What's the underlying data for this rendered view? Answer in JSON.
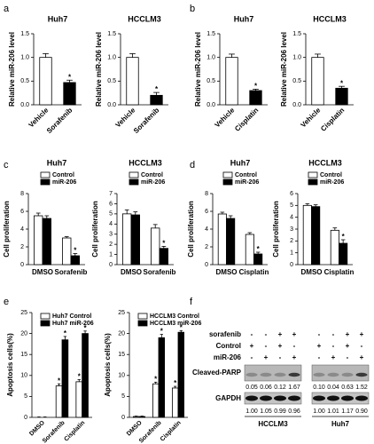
{
  "panel_labels": [
    "a",
    "b",
    "c",
    "d",
    "e",
    "f"
  ],
  "chart_data": [
    {
      "type": "bar",
      "title": "Huh7",
      "ylabel": "Relative miR-206 level",
      "categories": [
        "Vehicle",
        "Sorafenib"
      ],
      "values": [
        1.0,
        0.47
      ],
      "errors": [
        0.08,
        0.05
      ],
      "colors": [
        "#ffffff",
        "#000000"
      ],
      "annotations": [
        null,
        "*"
      ],
      "ylim": [
        0,
        1.5
      ],
      "yticks": [
        {
          "value": 0,
          "label": "0.0"
        },
        {
          "value": 0.5,
          "label": "0.5"
        },
        {
          "value": 1,
          "label": "1.0"
        },
        {
          "value": 1.5,
          "label": "1.5"
        }
      ]
    },
    {
      "type": "bar",
      "title": "HCCLM3",
      "ylabel": "Relative miR-206 level",
      "categories": [
        "Vehicle",
        "Sorafenib"
      ],
      "values": [
        1.0,
        0.2
      ],
      "errors": [
        0.08,
        0.06
      ],
      "colors": [
        "#ffffff",
        "#000000"
      ],
      "annotations": [
        null,
        "*"
      ],
      "ylim": [
        0,
        1.5
      ],
      "yticks": [
        {
          "value": 0,
          "label": "0.0"
        },
        {
          "value": 0.5,
          "label": "0.5"
        },
        {
          "value": 1,
          "label": "1.0"
        },
        {
          "value": 1.5,
          "label": "1.5"
        }
      ]
    },
    {
      "type": "bar",
      "title": "Huh7",
      "ylabel": "Relative miR-206 level",
      "categories": [
        "Vehicle",
        "Cisplatin"
      ],
      "values": [
        1.0,
        0.3
      ],
      "errors": [
        0.07,
        0.03
      ],
      "colors": [
        "#ffffff",
        "#000000"
      ],
      "annotations": [
        null,
        "*"
      ],
      "ylim": [
        0,
        1.5
      ],
      "yticks": [
        {
          "value": 0,
          "label": "0.0"
        },
        {
          "value": 0.5,
          "label": "0.5"
        },
        {
          "value": 1,
          "label": "1.0"
        },
        {
          "value": 1.5,
          "label": "1.5"
        }
      ]
    },
    {
      "type": "bar",
      "title": "HCCLM3",
      "ylabel": "Relative miR-206 level",
      "categories": [
        "Vehicle",
        "Cisplatin"
      ],
      "values": [
        1.0,
        0.35
      ],
      "errors": [
        0.07,
        0.04
      ],
      "colors": [
        "#ffffff",
        "#000000"
      ],
      "annotations": [
        null,
        "*"
      ],
      "ylim": [
        0,
        1.5
      ],
      "yticks": [
        {
          "value": 0,
          "label": "0.0"
        },
        {
          "value": 0.5,
          "label": "0.5"
        },
        {
          "value": 1,
          "label": "1.0"
        },
        {
          "value": 1.5,
          "label": "1.5"
        }
      ]
    },
    {
      "type": "bar",
      "title": "Huh7",
      "ylabel": "Cell proliferation",
      "categories": [
        "DMSO",
        "Sorafenib"
      ],
      "series": [
        {
          "name": "Control",
          "color": "#ffffff",
          "values": [
            5.5,
            3.0
          ],
          "errors": [
            0.3,
            0.15
          ],
          "annotations": [
            null,
            null
          ]
        },
        {
          "name": "miR-206",
          "color": "#000000",
          "values": [
            5.2,
            1.0
          ],
          "errors": [
            0.3,
            0.25
          ],
          "annotations": [
            null,
            "*"
          ]
        }
      ],
      "ylim": [
        0,
        8
      ],
      "yticks": [
        0,
        2,
        4,
        6,
        8
      ]
    },
    {
      "type": "bar",
      "title": "HCCLM3",
      "ylabel": "Cell proliferation",
      "categories": [
        "DMSO",
        "Sorafenib"
      ],
      "series": [
        {
          "name": "Control",
          "color": "#ffffff",
          "values": [
            5.0,
            3.6
          ],
          "errors": [
            0.4,
            0.35
          ],
          "annotations": [
            null,
            null
          ]
        },
        {
          "name": "miR-206",
          "color": "#000000",
          "values": [
            4.9,
            1.6
          ],
          "errors": [
            0.3,
            0.2
          ],
          "annotations": [
            null,
            "*"
          ]
        }
      ],
      "ylim": [
        0,
        7
      ],
      "yticks": [
        0,
        1,
        2,
        3,
        4,
        5,
        6,
        7
      ]
    },
    {
      "type": "bar",
      "title": "Huh7",
      "ylabel": "Cell proliferation",
      "categories": [
        "DMSO",
        "Cisplatin"
      ],
      "series": [
        {
          "name": "Control",
          "color": "#ffffff",
          "values": [
            5.7,
            3.4
          ],
          "errors": [
            0.2,
            0.2
          ],
          "annotations": [
            null,
            null
          ]
        },
        {
          "name": "miR-206",
          "color": "#000000",
          "values": [
            5.2,
            1.2
          ],
          "errors": [
            0.3,
            0.2
          ],
          "annotations": [
            null,
            "*"
          ]
        }
      ],
      "ylim": [
        0,
        8
      ],
      "yticks": [
        0,
        2,
        4,
        6,
        8
      ]
    },
    {
      "type": "bar",
      "title": "HCCLM3",
      "ylabel": "Cell proliferation",
      "categories": [
        "DMSO",
        "Cisplatin"
      ],
      "series": [
        {
          "name": "Control",
          "color": "#ffffff",
          "values": [
            5.0,
            2.9
          ],
          "errors": [
            0.15,
            0.2
          ],
          "annotations": [
            null,
            null
          ]
        },
        {
          "name": "miR-206",
          "color": "#000000",
          "values": [
            4.9,
            1.8
          ],
          "errors": [
            0.15,
            0.3
          ],
          "annotations": [
            null,
            "*"
          ]
        }
      ],
      "ylim": [
        0,
        6
      ],
      "yticks": [
        0,
        1,
        2,
        3,
        4,
        5,
        6
      ]
    },
    {
      "type": "bar",
      "ylabel": "Apoptosis cells(%)",
      "categories": [
        "DMSO",
        "Sorafenib",
        "Cisplatin"
      ],
      "series": [
        {
          "name": "Huh7 Control",
          "color": "#ffffff",
          "values": [
            0,
            7.5,
            8.5
          ],
          "errors": [
            0.1,
            0.5,
            0.5
          ],
          "annotations": [
            null,
            "*",
            "*"
          ]
        },
        {
          "name": "Huh7 miR-206",
          "color": "#000000",
          "values": [
            0,
            18.5,
            20
          ],
          "errors": [
            0.1,
            0.8,
            0.6
          ],
          "annotations": [
            null,
            "*",
            "*"
          ]
        }
      ],
      "ylim": [
        0,
        25
      ],
      "yticks": [
        0,
        5,
        10,
        15,
        20,
        25
      ]
    },
    {
      "type": "bar",
      "ylabel": "Apoptosis cells(%)",
      "categories": [
        "DMSO",
        "Sorafenib",
        "Cisplatin"
      ],
      "series": [
        {
          "name": "HCCLM3 Control",
          "color": "#ffffff",
          "values": [
            0.2,
            8,
            7
          ],
          "errors": [
            0.1,
            0.4,
            0.4
          ],
          "annotations": [
            null,
            "*",
            "*"
          ]
        },
        {
          "name": "HCCLM3 miR-206",
          "color": "#000000",
          "values": [
            0.2,
            19,
            20.3
          ],
          "errors": [
            0.1,
            0.8,
            0.4
          ],
          "annotations": [
            null,
            "*",
            "*"
          ]
        }
      ],
      "ylim": [
        0,
        25
      ],
      "yticks": [
        0,
        5,
        10,
        15,
        20,
        25
      ]
    }
  ],
  "blot": {
    "row_labels": [
      "sorafenib",
      "Control",
      "miR-206"
    ],
    "bands": [
      "Cleaved-PARP",
      "GAPDH"
    ],
    "groups": [
      {
        "name": "HCCLM3",
        "signs": [
          [
            "-",
            "-",
            "+",
            "+"
          ],
          [
            "+",
            "-",
            "+",
            "-"
          ],
          [
            "-",
            "+",
            "-",
            "+"
          ]
        ],
        "parp": [
          "0.05",
          "0.06",
          "0.12",
          "1.67"
        ],
        "gapdh": [
          "1.00",
          "1.05",
          "0.99",
          "0.96"
        ]
      },
      {
        "name": "Huh7",
        "signs": [
          [
            "-",
            "-",
            "+",
            "+"
          ],
          [
            "+",
            "-",
            "+",
            "-"
          ],
          [
            "-",
            "+",
            "-",
            "+"
          ]
        ],
        "parp": [
          "0.10",
          "0.04",
          "0.63",
          "1.52"
        ],
        "gapdh": [
          "1.00",
          "1.01",
          "1.17",
          "0.90"
        ]
      }
    ]
  }
}
